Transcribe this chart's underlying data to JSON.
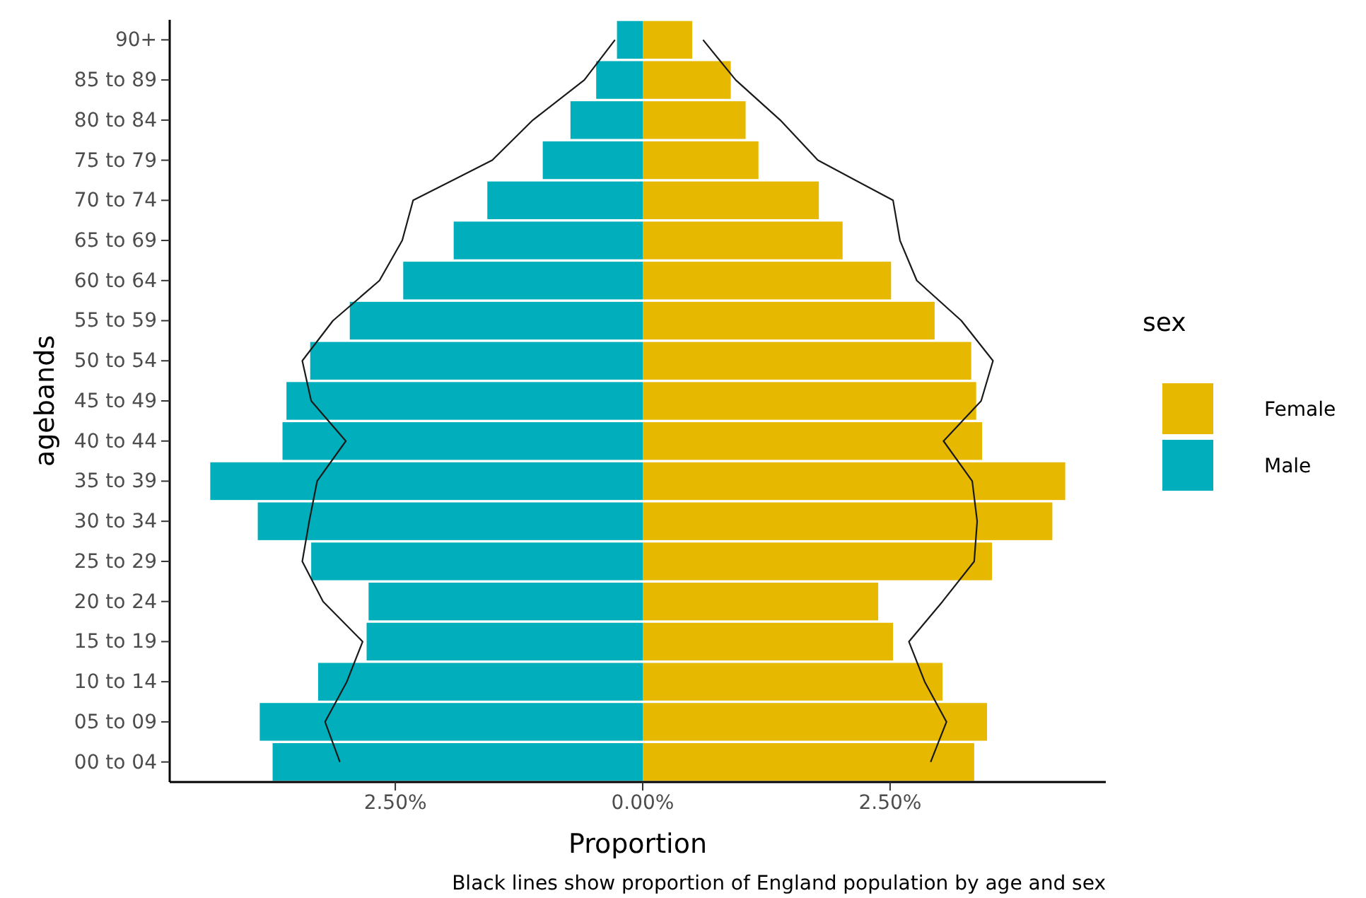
{
  "chart_data": {
    "type": "bar",
    "orientation": "horizontal",
    "stacked": true,
    "xlabel": "Proportion",
    "ylabel": "agebands",
    "legend_title": "sex",
    "legend": "right",
    "annotations": [
      "Black lines show proportion of England population by age and sex"
    ],
    "categories": [
      "90+",
      "85 to 89",
      "80 to 84",
      "75 to 79",
      "70 to 74",
      "65 to 69",
      "60 to 64",
      "55 to 59",
      "50 to 54",
      "45 to 49",
      "40 to 44",
      "35 to 39",
      "30 to 34",
      "25 to 29",
      "20 to 24",
      "15 to 19",
      "10 to 14",
      "05 to 09",
      "00 to 04"
    ],
    "xlim": [
      -4.78,
      4.68
    ],
    "xticks": [
      {
        "value": -2.5,
        "label": "2.50%"
      },
      {
        "value": 0,
        "label": "0.00%"
      },
      {
        "value": 2.5,
        "label": "2.50%"
      }
    ],
    "grid": false,
    "series": [
      {
        "name": "Female",
        "color": "#e6b800",
        "values": [
          0.5,
          0.89,
          1.04,
          1.17,
          1.78,
          2.02,
          2.51,
          2.95,
          3.32,
          3.37,
          3.43,
          4.27,
          4.14,
          3.53,
          2.38,
          2.53,
          3.03,
          3.48,
          3.35
        ]
      },
      {
        "name": "Male",
        "color": "#00afbb",
        "values": [
          -0.26,
          -0.47,
          -0.73,
          -1.01,
          -1.57,
          -1.91,
          -2.42,
          -2.96,
          -3.36,
          -3.6,
          -3.64,
          -4.37,
          -3.89,
          -3.35,
          -2.77,
          -2.79,
          -3.28,
          -3.87,
          -3.74
        ]
      },
      {
        "type": "line",
        "color": "#1a1a1a",
        "values": [
          0.61,
          0.94,
          1.39,
          1.77,
          2.53,
          2.6,
          2.77,
          3.22,
          3.54,
          3.42,
          3.04,
          3.33,
          3.38,
          3.35,
          3.03,
          2.69,
          2.85,
          3.07,
          2.91
        ]
      },
      {
        "type": "line",
        "color": "#1a1a1a",
        "values": [
          -0.28,
          -0.59,
          -1.11,
          -1.52,
          -2.32,
          -2.43,
          -2.66,
          -3.13,
          -3.44,
          -3.35,
          -3.0,
          -3.29,
          -3.37,
          -3.44,
          -3.23,
          -2.83,
          -2.99,
          -3.21,
          -3.06
        ]
      }
    ]
  }
}
